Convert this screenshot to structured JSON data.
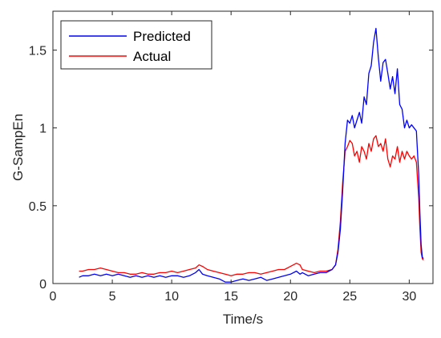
{
  "chart_data": {
    "type": "line",
    "title": "",
    "xlabel": "Time/s",
    "ylabel": "G-SampEn",
    "xlim": [
      0,
      32
    ],
    "ylim": [
      0,
      1.75
    ],
    "xticks": [
      0,
      5,
      10,
      15,
      20,
      25,
      30
    ],
    "xtick_labels": [
      "0",
      "5",
      "10",
      "15",
      "20",
      "25",
      "30"
    ],
    "yticks": [
      0,
      0.5,
      1,
      1.5
    ],
    "ytick_labels": [
      "0",
      "0.5",
      "1",
      "1.5"
    ],
    "grid": false,
    "legend_position": "top-left",
    "series": [
      {
        "name": "Predicted",
        "color": "#0000ff",
        "x": [
          2.2,
          2.5,
          3.0,
          3.5,
          4.0,
          4.5,
          5.0,
          5.5,
          6.0,
          6.5,
          7.0,
          7.5,
          8.0,
          8.5,
          9.0,
          9.5,
          10.0,
          10.5,
          11.0,
          11.5,
          12.0,
          12.3,
          12.6,
          13.0,
          13.5,
          14.0,
          14.5,
          15.0,
          15.5,
          16.0,
          16.5,
          17.0,
          17.5,
          18.0,
          18.5,
          19.0,
          19.5,
          20.0,
          20.5,
          20.8,
          21.0,
          21.5,
          22.0,
          22.5,
          23.0,
          23.5,
          23.8,
          24.0,
          24.2,
          24.4,
          24.6,
          24.8,
          25.0,
          25.2,
          25.4,
          25.6,
          25.8,
          26.0,
          26.2,
          26.4,
          26.6,
          26.8,
          27.0,
          27.2,
          27.4,
          27.6,
          27.8,
          28.0,
          28.2,
          28.4,
          28.6,
          28.8,
          29.0,
          29.2,
          29.4,
          29.6,
          29.8,
          30.0,
          30.2,
          30.4,
          30.6,
          30.8,
          30.9,
          31.0,
          31.1,
          31.2
        ],
        "y": [
          0.04,
          0.05,
          0.05,
          0.06,
          0.05,
          0.06,
          0.05,
          0.06,
          0.05,
          0.04,
          0.05,
          0.04,
          0.05,
          0.04,
          0.05,
          0.04,
          0.05,
          0.05,
          0.04,
          0.05,
          0.07,
          0.09,
          0.06,
          0.05,
          0.04,
          0.03,
          0.01,
          0.01,
          0.02,
          0.03,
          0.02,
          0.03,
          0.04,
          0.02,
          0.03,
          0.04,
          0.05,
          0.06,
          0.08,
          0.06,
          0.07,
          0.05,
          0.06,
          0.07,
          0.07,
          0.09,
          0.12,
          0.2,
          0.35,
          0.6,
          0.9,
          1.05,
          1.03,
          1.08,
          1.0,
          1.05,
          1.1,
          1.03,
          1.2,
          1.15,
          1.35,
          1.4,
          1.55,
          1.64,
          1.45,
          1.3,
          1.42,
          1.44,
          1.35,
          1.25,
          1.33,
          1.22,
          1.38,
          1.15,
          1.12,
          1.0,
          1.05,
          1.0,
          1.02,
          1.0,
          0.98,
          0.7,
          0.45,
          0.25,
          0.17,
          0.16
        ]
      },
      {
        "name": "Actual",
        "color": "#ff0000",
        "x": [
          2.2,
          2.5,
          3.0,
          3.5,
          4.0,
          4.5,
          5.0,
          5.5,
          6.0,
          6.5,
          7.0,
          7.5,
          8.0,
          8.5,
          9.0,
          9.5,
          10.0,
          10.5,
          11.0,
          11.5,
          12.0,
          12.3,
          12.6,
          13.0,
          13.5,
          14.0,
          14.5,
          15.0,
          15.5,
          16.0,
          16.5,
          17.0,
          17.5,
          18.0,
          18.5,
          19.0,
          19.5,
          20.0,
          20.5,
          20.8,
          21.0,
          21.5,
          22.0,
          22.5,
          23.0,
          23.5,
          23.8,
          24.0,
          24.2,
          24.4,
          24.6,
          24.8,
          25.0,
          25.2,
          25.4,
          25.6,
          25.8,
          26.0,
          26.2,
          26.4,
          26.6,
          26.8,
          27.0,
          27.2,
          27.4,
          27.6,
          27.8,
          28.0,
          28.2,
          28.4,
          28.6,
          28.8,
          29.0,
          29.2,
          29.4,
          29.6,
          29.8,
          30.0,
          30.2,
          30.4,
          30.6,
          30.8,
          30.9,
          31.0,
          31.1,
          31.2
        ],
        "y": [
          0.08,
          0.08,
          0.09,
          0.09,
          0.1,
          0.09,
          0.08,
          0.07,
          0.07,
          0.06,
          0.06,
          0.07,
          0.06,
          0.06,
          0.07,
          0.07,
          0.08,
          0.07,
          0.08,
          0.09,
          0.1,
          0.12,
          0.11,
          0.09,
          0.08,
          0.07,
          0.06,
          0.05,
          0.06,
          0.06,
          0.07,
          0.07,
          0.06,
          0.07,
          0.08,
          0.09,
          0.09,
          0.11,
          0.13,
          0.12,
          0.09,
          0.08,
          0.07,
          0.08,
          0.08,
          0.09,
          0.12,
          0.22,
          0.4,
          0.65,
          0.85,
          0.88,
          0.92,
          0.9,
          0.82,
          0.85,
          0.78,
          0.88,
          0.85,
          0.8,
          0.9,
          0.85,
          0.93,
          0.95,
          0.88,
          0.9,
          0.85,
          0.93,
          0.8,
          0.75,
          0.82,
          0.8,
          0.88,
          0.78,
          0.85,
          0.8,
          0.85,
          0.82,
          0.8,
          0.82,
          0.78,
          0.55,
          0.35,
          0.2,
          0.16,
          0.15
        ]
      }
    ]
  }
}
